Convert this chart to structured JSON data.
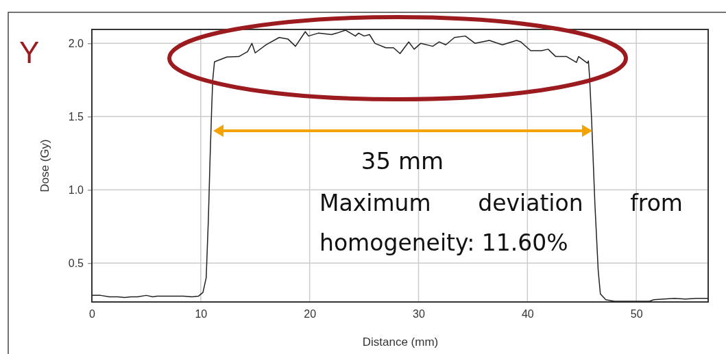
{
  "chart_data": {
    "type": "line",
    "title": "Y",
    "xlabel": "Distance (mm)",
    "ylabel": "Dose (Gy)",
    "xlim": [
      0,
      56.6
    ],
    "ylim": [
      0.235,
      2.095
    ],
    "xticks": [
      0,
      10,
      20,
      30,
      40,
      50
    ],
    "yticks": [
      {
        "value": 0.5,
        "label": "0.5"
      },
      {
        "value": 1,
        "label": "1.0"
      },
      {
        "value": 1.5,
        "label": "1.5"
      },
      {
        "value": 2,
        "label": "2.0"
      }
    ],
    "grid": true,
    "marker": "none",
    "line_style": "solid",
    "annotations": [
      "35 mm",
      "Maximum deviation from homogeneity: 11.60%"
    ],
    "series": [
      {
        "color": "#222222",
        "x": [
          0,
          0.8,
          1.6,
          2.4,
          3.0,
          3.6,
          4.2,
          5.0,
          5.6,
          6.0,
          6.6,
          7.4,
          8.4,
          9.2,
          9.8,
          10.2,
          10.5,
          10.7,
          10.85,
          11.0,
          11.1,
          11.26,
          12.4,
          13.5,
          14.3,
          14.7,
          15.0,
          16.0,
          17.2,
          18.0,
          18.7,
          19.6,
          19.9,
          20.8,
          22.0,
          22.5,
          23.3,
          24.2,
          24.5,
          25.0,
          25.5,
          26.0,
          27.0,
          27.7,
          28.3,
          29.1,
          29.6,
          30.2,
          31.3,
          31.9,
          32.5,
          33.3,
          34.3,
          35.2,
          36.5,
          37.7,
          39.0,
          39.4,
          40.3,
          41.3,
          41.9,
          42.6,
          43.6,
          44.5,
          44.7,
          45.5,
          45.6,
          45.7,
          45.9,
          46.2,
          46.5,
          46.7,
          47.2,
          48.0,
          50.0,
          51.2,
          51.6,
          52.5,
          53.5,
          54.5,
          55.5,
          56.6
        ],
        "values": [
          0.28,
          0.28,
          0.27,
          0.27,
          0.265,
          0.27,
          0.27,
          0.28,
          0.27,
          0.275,
          0.275,
          0.275,
          0.275,
          0.27,
          0.275,
          0.3,
          0.4,
          0.8,
          1.2,
          1.55,
          1.75,
          1.874,
          1.907,
          1.91,
          1.944,
          2.0,
          1.935,
          1.99,
          2.04,
          2.03,
          1.98,
          2.08,
          2.05,
          2.07,
          2.06,
          2.07,
          2.09,
          2.05,
          2.07,
          2.05,
          2.06,
          2.0,
          1.97,
          1.97,
          1.93,
          2.01,
          1.96,
          2.0,
          1.98,
          2.01,
          1.99,
          2.04,
          2.05,
          2.0,
          2.02,
          1.99,
          2.02,
          2.01,
          1.95,
          1.95,
          1.96,
          1.91,
          1.91,
          1.87,
          1.91,
          1.865,
          1.88,
          1.78,
          1.47,
          0.9,
          0.45,
          0.29,
          0.25,
          0.24,
          0.24,
          0.24,
          0.25,
          0.255,
          0.26,
          0.255,
          0.26,
          0.26
        ]
      }
    ]
  }
}
